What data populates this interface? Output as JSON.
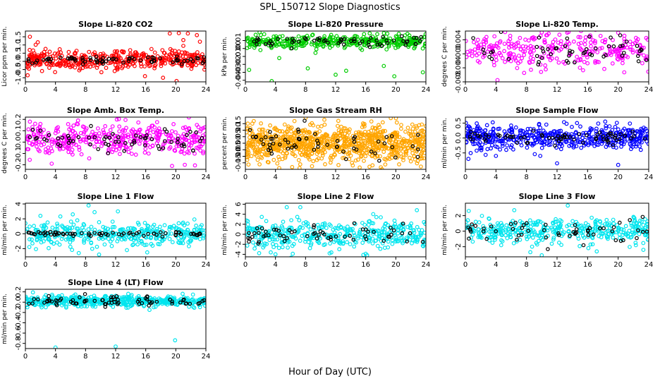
{
  "page": {
    "title": "SPL_150712  Slope Diagnostics",
    "xlabel": "Hour of Day (UTC)"
  },
  "chart_data": [
    {
      "type": "scatter",
      "title": "Slope Li-820 CO2",
      "ylabel": "Licor ppm per min.",
      "color": "#ff0000",
      "xlim": [
        0,
        24
      ],
      "xticks": [
        0,
        4,
        8,
        12,
        16,
        20,
        24
      ],
      "ylim": [
        -1.25,
        1.85
      ],
      "yticks": [
        -1.0,
        -0.5,
        0.0,
        0.5,
        1.0,
        1.5
      ],
      "ytick_labels": [
        "-1.0",
        "-0.5",
        "0.0",
        "0.5",
        "1.0",
        "1.5"
      ],
      "center": 0.1,
      "spread": 0.3,
      "black_spread": 0.12,
      "n": 420,
      "nb": 70,
      "seed": 11,
      "outliers": [
        [
          0.6,
          1.5
        ],
        [
          19.2,
          1.7
        ],
        [
          20.4,
          1.72
        ],
        [
          21.6,
          1.7
        ],
        [
          22.8,
          1.6
        ],
        [
          18.3,
          -1.0
        ],
        [
          20.1,
          -1.2
        ],
        [
          15.9,
          -0.9
        ],
        [
          0.3,
          -0.85
        ],
        [
          21,
          1.3
        ],
        [
          23.2,
          1.2
        ]
      ]
    },
    {
      "type": "scatter",
      "title": "Slope Li-820 Pressure",
      "ylabel": "kPa per min.",
      "color": "#00cc00",
      "xlim": [
        0,
        24
      ],
      "xticks": [
        0,
        4,
        8,
        12,
        16,
        20,
        24
      ],
      "ylim": [
        -0.042,
        0.022
      ],
      "yticks": [
        -0.04,
        -0.03,
        -0.02,
        -0.01,
        0.0,
        0.01
      ],
      "ytick_labels": [
        "-0.04",
        "-0.03",
        "-0.02",
        "-0.01",
        "0.00",
        "0.01"
      ],
      "center": 0.009,
      "spread": 0.004,
      "black_spread": 0.003,
      "n": 380,
      "nb": 60,
      "seed": 23,
      "outliers": [
        [
          0.5,
          -0.027
        ],
        [
          3.5,
          -0.041
        ],
        [
          4.5,
          -0.012
        ],
        [
          8.3,
          -0.025
        ],
        [
          12,
          -0.033
        ],
        [
          13.4,
          -0.028
        ],
        [
          18.4,
          -0.022
        ],
        [
          19.8,
          -0.035
        ],
        [
          23.6,
          -0.03
        ],
        [
          2.5,
          0.018
        ]
      ]
    },
    {
      "type": "scatter",
      "title": "Slope Li-820 Temp.",
      "ylabel": "degrees C per min.",
      "color": "#ff00ff",
      "xlim": [
        0,
        24
      ],
      "xticks": [
        0,
        4,
        8,
        12,
        16,
        20,
        24
      ],
      "ylim": [
        -0.008,
        0.0065
      ],
      "yticks": [
        -0.008,
        -0.004,
        0.0,
        0.004
      ],
      "ytick_labels": [
        "-0.008",
        "-0.004",
        "0.000",
        "0.004"
      ],
      "center": 0.0008,
      "spread": 0.0025,
      "black_spread": 0.0018,
      "n": 300,
      "nb": 55,
      "seed": 37,
      "outliers": [
        [
          4.2,
          -0.0075
        ],
        [
          5.2,
          0.0062
        ],
        [
          13.5,
          0.0062
        ],
        [
          20,
          0.006
        ]
      ]
    },
    {
      "type": "scatter",
      "title": "Slope Amb. Box Temp.",
      "ylabel": "degrees C per min.",
      "color": "#ff00ff",
      "xlim": [
        0,
        24
      ],
      "xticks": [
        0,
        4,
        8,
        12,
        16,
        20,
        24
      ],
      "ylim": [
        -0.24,
        0.22
      ],
      "yticks": [
        -0.2,
        -0.1,
        0.0,
        0.1,
        0.2
      ],
      "ytick_labels": [
        "-0.2",
        "-0.1",
        "0.0",
        "0.1",
        "0.2"
      ],
      "center": 0.02,
      "spread": 0.07,
      "black_spread": 0.05,
      "n": 400,
      "nb": 65,
      "seed": 41,
      "outliers": [
        [
          0.6,
          0.18
        ],
        [
          2,
          0.16
        ],
        [
          7,
          0.19
        ],
        [
          19.5,
          -0.21
        ],
        [
          21.2,
          -0.2
        ],
        [
          3.5,
          -0.19
        ]
      ]
    },
    {
      "type": "scatter",
      "title": "Slope Gas Stream RH",
      "ylabel": "percent per min.",
      "color": "#ffa500",
      "xlim": [
        0,
        24
      ],
      "xticks": [
        0,
        4,
        8,
        12,
        16,
        20,
        24
      ],
      "ylim": [
        -0.2,
        0.2
      ],
      "yticks": [
        -0.15,
        -0.1,
        -0.05,
        0.0,
        0.05,
        0.1,
        0.15
      ],
      "ytick_labels": [
        "-0.15",
        "-0.10",
        "-0.05",
        "0.00",
        "0.05",
        "0.10",
        "0.15"
      ],
      "center": 0.0,
      "spread": 0.07,
      "black_spread": 0.06,
      "n": 900,
      "nb": 60,
      "seed": 53,
      "outliers": [
        [
          4.5,
          -0.19
        ],
        [
          7.2,
          -0.19
        ],
        [
          10.5,
          0.18
        ],
        [
          16.5,
          -0.18
        ]
      ]
    },
    {
      "type": "scatter",
      "title": "Slope Sample Flow",
      "ylabel": "ml/min per min.",
      "color": "#0000ff",
      "xlim": [
        0,
        24
      ],
      "xticks": [
        0,
        4,
        8,
        12,
        16,
        20,
        24
      ],
      "ylim": [
        -1.05,
        0.7
      ],
      "yticks": [
        -0.5,
        0.0,
        0.5
      ],
      "ytick_labels": [
        "-0.5",
        "0.0",
        "0.5"
      ],
      "center": 0.02,
      "spread": 0.18,
      "black_spread": 0.1,
      "n": 480,
      "nb": 70,
      "seed": 67,
      "outliers": [
        [
          4,
          -0.6
        ],
        [
          9.8,
          -0.6
        ],
        [
          12,
          -0.85
        ],
        [
          18.3,
          0.55
        ],
        [
          20,
          -0.9
        ],
        [
          0.4,
          -0.7
        ],
        [
          10.6,
          0.45
        ]
      ]
    },
    {
      "type": "scatter",
      "title": "Slope Line 1 Flow",
      "ylabel": "ml/min per min.",
      "color": "#00e5ee",
      "xlim": [
        0,
        24
      ],
      "xticks": [
        0,
        4,
        8,
        12,
        16,
        20,
        24
      ],
      "ylim": [
        -3.1,
        4.1
      ],
      "yticks": [
        -2,
        0,
        2,
        4
      ],
      "ytick_labels": [
        "-2",
        "0",
        "2",
        "4"
      ],
      "center": 0.0,
      "spread": 0.8,
      "black_spread": 0.12,
      "n": 360,
      "nb": 70,
      "seed": 71,
      "outliers": [
        [
          8.4,
          3.8
        ],
        [
          9.2,
          2.9
        ],
        [
          9.8,
          -2.8
        ],
        [
          12.3,
          3.0
        ],
        [
          16.2,
          -2.5
        ],
        [
          2,
          2.4
        ],
        [
          6.3,
          2.6
        ],
        [
          7.1,
          -2.6
        ],
        [
          13.5,
          -2.2
        ]
      ]
    },
    {
      "type": "scatter",
      "title": "Slope Line 2 Flow",
      "ylabel": "ml/min per min.",
      "color": "#00e5ee",
      "xlim": [
        0,
        24
      ],
      "xticks": [
        0,
        4,
        8,
        12,
        16,
        20,
        24
      ],
      "ylim": [
        -4.5,
        6.2
      ],
      "yticks": [
        -4,
        -2,
        0,
        2,
        4,
        6
      ],
      "ytick_labels": [
        "-4",
        "-2",
        "0",
        "2",
        "4",
        "6"
      ],
      "center": 0.0,
      "spread": 1.4,
      "black_spread": 1.1,
      "n": 400,
      "nb": 60,
      "seed": 83,
      "outliers": [
        [
          5.5,
          5.4
        ],
        [
          7.3,
          5.4
        ],
        [
          4,
          -4
        ],
        [
          6.3,
          -3.9
        ],
        [
          16,
          -3.9
        ],
        [
          11.2,
          -3.8
        ],
        [
          22.8,
          4.8
        ]
      ]
    },
    {
      "type": "scatter",
      "title": "Slope Line 3 Flow",
      "ylabel": "ml/min per min.",
      "color": "#00e5ee",
      "xlim": [
        0,
        24
      ],
      "xticks": [
        0,
        4,
        8,
        12,
        16,
        20,
        24
      ],
      "ylim": [
        -3.3,
        3.6
      ],
      "yticks": [
        -2,
        0,
        2
      ],
      "ytick_labels": [
        "-2",
        "0",
        "2"
      ],
      "center": 0.0,
      "spread": 0.85,
      "black_spread": 0.9,
      "n": 380,
      "nb": 55,
      "seed": 97,
      "outliers": [
        [
          6.4,
          2.7
        ],
        [
          13.4,
          3.3
        ],
        [
          8.5,
          -2.7
        ],
        [
          10,
          -3.1
        ],
        [
          17.2,
          -2.6
        ],
        [
          23.3,
          -2.4
        ]
      ]
    },
    {
      "type": "scatter",
      "title": "Slope Line 4 (LT) Flow",
      "ylabel": "ml/min per min.",
      "color": "#00e5ee",
      "xlim": [
        0,
        24
      ],
      "xticks": [
        0,
        4,
        8,
        12,
        16,
        20,
        24
      ],
      "ylim": [
        -0.9,
        0.25
      ],
      "yticks": [
        -0.8,
        -0.6,
        -0.4,
        -0.2,
        0.0,
        0.2
      ],
      "ytick_labels": [
        "-0.8",
        "-0.6",
        "-0.4",
        "-0.2",
        "0.0",
        "0.2"
      ],
      "center": 0.02,
      "spread": 0.05,
      "black_spread": 0.05,
      "n": 500,
      "nb": 70,
      "seed": 101,
      "outliers": [
        [
          4,
          -0.88
        ],
        [
          12,
          -0.86
        ],
        [
          19.9,
          -0.74
        ],
        [
          1,
          0.19
        ],
        [
          16.5,
          -0.15
        ]
      ]
    }
  ]
}
